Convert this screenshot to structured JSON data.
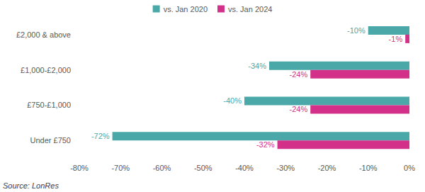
{
  "chart_data": {
    "type": "bar",
    "orientation": "horizontal",
    "categories": [
      "Under £750",
      "£750-£1,000",
      "£1,000-£2,000",
      "£2,000 & above"
    ],
    "series": [
      {
        "name": "vs. Jan 2020",
        "color": "#4aa8a8",
        "values": [
          -72,
          -40,
          -34,
          -10
        ],
        "value_labels": [
          "-72%",
          "-40%",
          "-34%",
          "-10%"
        ]
      },
      {
        "name": "vs. Jan 2024",
        "color": "#d3308a",
        "values": [
          -32,
          -24,
          -24,
          -1
        ],
        "value_labels": [
          "-32%",
          "-24%",
          "-24%",
          "-1%"
        ]
      }
    ],
    "xlim": [
      -80,
      0
    ],
    "xticks": [
      {
        "value": -80,
        "label": "-80%"
      },
      {
        "value": -70,
        "label": "-70%"
      },
      {
        "value": -60,
        "label": "-60%"
      },
      {
        "value": -50,
        "label": "-50%"
      },
      {
        "value": -40,
        "label": "-40%"
      },
      {
        "value": -30,
        "label": "-30%"
      },
      {
        "value": -20,
        "label": "-20%"
      },
      {
        "value": -10,
        "label": "-10%"
      },
      {
        "value": 0,
        "label": "0%"
      }
    ],
    "data_labels": true,
    "grid": false,
    "legend": "top",
    "annotations": [
      "Source: LonRes"
    ]
  }
}
